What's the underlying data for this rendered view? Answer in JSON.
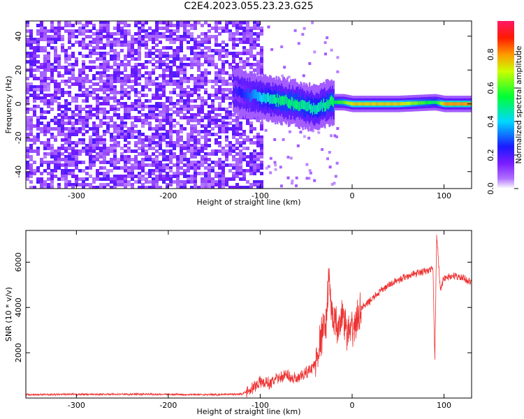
{
  "title": "C2E4.2023.055.23.23.G25",
  "chart_data": [
    {
      "type": "heatmap",
      "name": "spectrogram",
      "xlabel": "Height of straight line (km)",
      "ylabel": "Frequency (Hz)",
      "xlim": [
        -355,
        130
      ],
      "ylim": [
        -50,
        49
      ],
      "xticks": [
        -300,
        -200,
        -100,
        0,
        100
      ],
      "yticks": [
        -40,
        -20,
        0,
        20,
        40
      ],
      "colorbar": {
        "label": "Normalized spectral amplitude",
        "range": [
          0,
          1
        ],
        "ticks": [
          "0.0",
          "0.2",
          "0.4",
          "0.6",
          "0.8"
        ],
        "tick_values": [
          0.0,
          0.2,
          0.4,
          0.6,
          0.8
        ],
        "colormap": "rainbow (white-purple-blue-cyan-green-yellow-red-magenta)"
      },
      "noise_region_x": [
        -355,
        -97
      ],
      "signal_ridge": [
        {
          "x": -130,
          "f": 8,
          "amp": 0.2
        },
        {
          "x": -120,
          "f": 6,
          "amp": 0.25
        },
        {
          "x": -100,
          "f": 4,
          "amp": 0.4
        },
        {
          "x": -80,
          "f": 2,
          "amp": 0.5
        },
        {
          "x": -60,
          "f": 0,
          "amp": 0.5
        },
        {
          "x": -40,
          "f": -3,
          "amp": 0.45
        },
        {
          "x": -25,
          "f": 1,
          "amp": 0.5
        },
        {
          "x": -10,
          "f": 1,
          "amp": 0.6
        },
        {
          "x": 0,
          "f": 0,
          "amp": 0.75
        },
        {
          "x": 50,
          "f": 0,
          "amp": 0.75
        },
        {
          "x": 90,
          "f": 1,
          "amp": 0.5
        },
        {
          "x": 100,
          "f": 0,
          "amp": 0.8
        },
        {
          "x": 130,
          "f": 0,
          "amp": 0.8
        }
      ]
    },
    {
      "type": "line",
      "name": "snr",
      "xlabel": "Height of straight line (km)",
      "ylabel": "SNR (10 * v/v)",
      "xlim": [
        -355,
        130
      ],
      "ylim": [
        0,
        7400
      ],
      "xticks": [
        -300,
        -200,
        -100,
        0,
        100
      ],
      "yticks": [
        2000,
        4000,
        6000
      ],
      "series": [
        {
          "color": "#ee3333",
          "points": [
            [
              -355,
              150
            ],
            [
              -300,
              160
            ],
            [
              -250,
              170
            ],
            [
              -200,
              160
            ],
            [
              -150,
              150
            ],
            [
              -120,
              180
            ],
            [
              -110,
              400
            ],
            [
              -100,
              700
            ],
            [
              -90,
              650
            ],
            [
              -80,
              900
            ],
            [
              -70,
              1000
            ],
            [
              -60,
              800
            ],
            [
              -50,
              1100
            ],
            [
              -40,
              1500
            ],
            [
              -35,
              2500
            ],
            [
              -28,
              3500
            ],
            [
              -25,
              5500
            ],
            [
              -22,
              3500
            ],
            [
              -15,
              3000
            ],
            [
              -10,
              3800
            ],
            [
              -5,
              2800
            ],
            [
              0,
              3000
            ],
            [
              5,
              3400
            ],
            [
              10,
              4000
            ],
            [
              15,
              4100
            ],
            [
              20,
              4300
            ],
            [
              30,
              4700
            ],
            [
              40,
              5000
            ],
            [
              60,
              5400
            ],
            [
              80,
              5600
            ],
            [
              88,
              5700
            ],
            [
              90,
              1600
            ],
            [
              92,
              7300
            ],
            [
              96,
              4800
            ],
            [
              100,
              5300
            ],
            [
              110,
              5400
            ],
            [
              120,
              5300
            ],
            [
              130,
              5100
            ]
          ]
        }
      ]
    }
  ]
}
